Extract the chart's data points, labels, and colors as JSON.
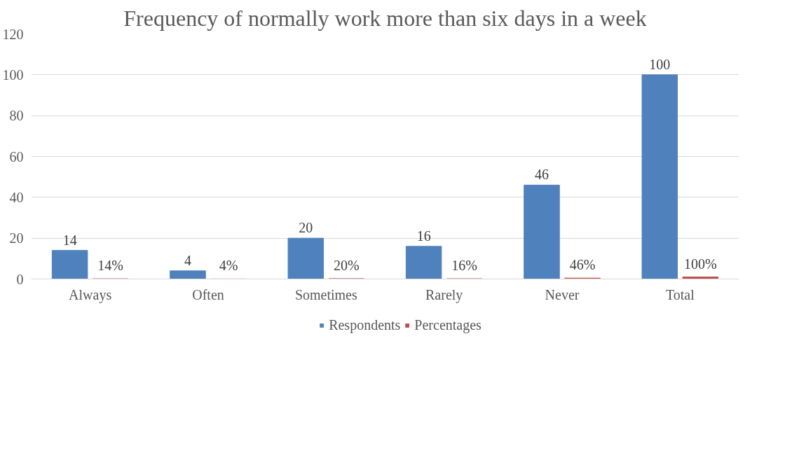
{
  "chart_data": {
    "type": "bar",
    "title": "Frequency of normally work more than six days in a week",
    "categories": [
      "Always",
      "Often",
      "Sometimes",
      "Rarely",
      "Never",
      "Total"
    ],
    "series": [
      {
        "name": "Respondents",
        "color": "#4f81bd",
        "values": [
          14,
          4,
          20,
          16,
          46,
          100
        ],
        "value_labels": [
          "14",
          "4",
          "20",
          "16",
          "46",
          "100"
        ]
      },
      {
        "name": "Percentages",
        "color": "#c0504d",
        "values": [
          0.14,
          0.04,
          0.2,
          0.16,
          0.46,
          1.0
        ],
        "value_labels": [
          "14%",
          "4%",
          "20%",
          "16%",
          "46%",
          "100%"
        ]
      }
    ],
    "ylim": [
      0,
      120
    ],
    "yticks": [
      0,
      20,
      40,
      60,
      80,
      100,
      120
    ],
    "grid": "y",
    "legend": "bottom"
  }
}
